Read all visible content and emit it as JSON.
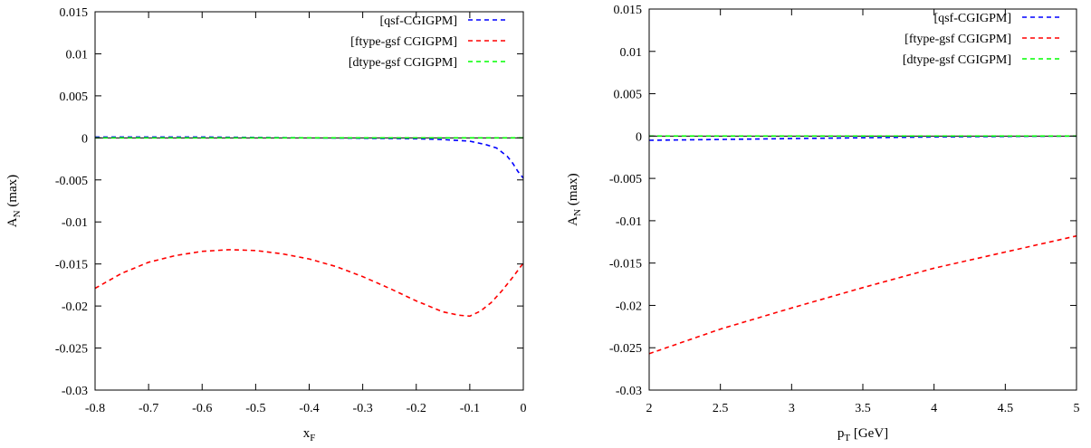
{
  "chart_data": [
    {
      "type": "line",
      "title": "",
      "xlabel": {
        "main": "x",
        "sub": "F",
        "rest": ""
      },
      "ylabel": {
        "main": "A",
        "sub": "N",
        "rest": " (max)"
      },
      "xlim": [
        -0.8,
        0
      ],
      "ylim": [
        -0.03,
        0.015
      ],
      "xticks": [
        -0.8,
        -0.7,
        -0.6,
        -0.5,
        -0.4,
        -0.3,
        -0.2,
        -0.1,
        0
      ],
      "xtick_labels": [
        "-0.8",
        "-0.7",
        "-0.6",
        "-0.5",
        "-0.4",
        "-0.3",
        "-0.2",
        "-0.1",
        "0"
      ],
      "yticks": [
        0.015,
        0.01,
        0.005,
        0,
        -0.005,
        -0.01,
        -0.015,
        -0.02,
        -0.025,
        -0.03
      ],
      "ytick_labels": [
        "0.015",
        "0.01",
        "0.005",
        "0",
        "-0.005",
        "-0.01",
        "-0.015",
        "-0.02",
        "-0.025",
        "-0.03"
      ],
      "grid": false,
      "legend_position": "top-right",
      "series": [
        {
          "name": "[qsf-CGIGPM]",
          "color": "#0000ff",
          "style": "dashed",
          "x": [
            -0.8,
            -0.7,
            -0.6,
            -0.5,
            -0.4,
            -0.3,
            -0.2,
            -0.15,
            -0.1,
            -0.07,
            -0.05,
            -0.03,
            -0.02,
            -0.01,
            0
          ],
          "y": [
            0.0001,
            0.0001,
            0.0001,
            5e-05,
            0.0,
            -5e-05,
            -0.0001,
            -0.0002,
            -0.0004,
            -0.0008,
            -0.0012,
            -0.0022,
            -0.003,
            -0.004,
            -0.0048
          ]
        },
        {
          "name": "[ftype-gsf CGIGPM]",
          "color": "#ff0000",
          "style": "dashed",
          "x": [
            -0.8,
            -0.75,
            -0.7,
            -0.65,
            -0.6,
            -0.55,
            -0.5,
            -0.45,
            -0.4,
            -0.35,
            -0.3,
            -0.25,
            -0.2,
            -0.15,
            -0.12,
            -0.1,
            -0.08,
            -0.06,
            -0.04,
            -0.02,
            0
          ],
          "y": [
            -0.0179,
            -0.0161,
            -0.0148,
            -0.014,
            -0.0135,
            -0.0133,
            -0.0134,
            -0.0138,
            -0.0144,
            -0.0153,
            -0.0165,
            -0.0179,
            -0.0194,
            -0.0207,
            -0.0211,
            -0.0212,
            -0.0206,
            -0.0196,
            -0.0182,
            -0.0166,
            -0.0149
          ]
        },
        {
          "name": "[dtype-gsf CGIGPM]",
          "color": "#00ff00",
          "style": "dashed",
          "x": [
            -0.8,
            0
          ],
          "y": [
            0,
            0
          ]
        }
      ]
    },
    {
      "type": "line",
      "title": "",
      "xlabel": {
        "main": "p",
        "sub": "T",
        "rest": " [GeV]"
      },
      "ylabel": {
        "main": "A",
        "sub": "N",
        "rest": " (max)"
      },
      "xlim": [
        2,
        5
      ],
      "ylim": [
        -0.03,
        0.015
      ],
      "xticks": [
        2,
        2.5,
        3,
        3.5,
        4,
        4.5,
        5
      ],
      "xtick_labels": [
        "2",
        "2.5",
        "3",
        "3.5",
        "4",
        "4.5",
        "5"
      ],
      "yticks": [
        0.015,
        0.01,
        0.005,
        0,
        -0.005,
        -0.01,
        -0.015,
        -0.02,
        -0.025,
        -0.03
      ],
      "ytick_labels": [
        "0.015",
        "0.01",
        "0.005",
        "0",
        "-0.005",
        "-0.01",
        "-0.015",
        "-0.02",
        "-0.025",
        "-0.03"
      ],
      "grid": false,
      "legend_position": "top-right",
      "series": [
        {
          "name": "[qsf-CGIGPM]",
          "color": "#0000ff",
          "style": "dashed",
          "x": [
            2,
            2.5,
            3,
            3.5,
            4,
            4.5,
            5
          ],
          "y": [
            -0.0005,
            -0.0004,
            -0.0003,
            -0.0002,
            -0.0001,
            -5e-05,
            0
          ]
        },
        {
          "name": "[ftype-gsf CGIGPM]",
          "color": "#ff0000",
          "style": "dashed",
          "x": [
            2,
            2.5,
            3,
            3.5,
            4,
            4.5,
            5
          ],
          "y": [
            -0.0257,
            -0.0228,
            -0.0203,
            -0.0179,
            -0.0156,
            -0.0137,
            -0.0118
          ]
        },
        {
          "name": "[dtype-gsf CGIGPM]",
          "color": "#00ff00",
          "style": "dashed",
          "x": [
            2,
            5
          ],
          "y": [
            0,
            0
          ]
        }
      ]
    }
  ]
}
